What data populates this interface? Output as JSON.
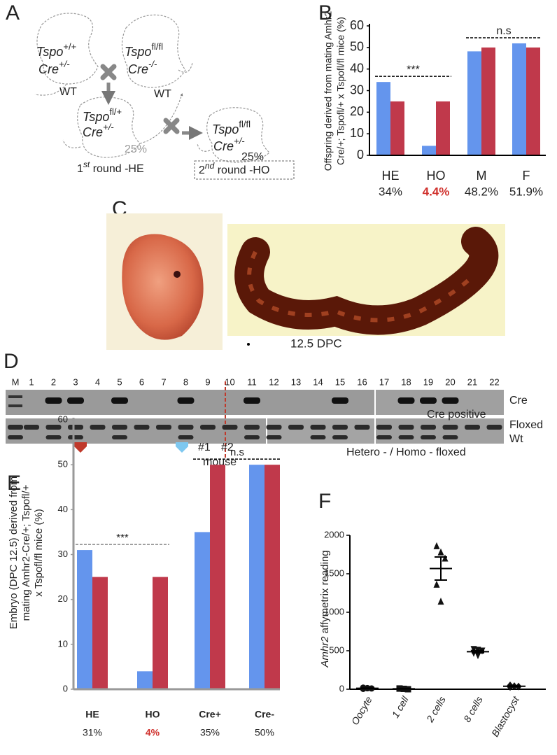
{
  "panel_letters": [
    "A",
    "B",
    "C",
    "D",
    "E",
    "F"
  ],
  "diagram": {
    "mice": [
      {
        "gene": "Tspo",
        "genotype": "+/+",
        "cre": "Cre",
        "cre_genotype": "+/-",
        "label": "WT"
      },
      {
        "gene": "Tspo",
        "genotype": "fl/fl",
        "cre": "Cre",
        "cre_genotype": "-/-",
        "label": "WT"
      },
      {
        "gene": "Tspo",
        "genotype": "fl/+",
        "cre": "Cre",
        "cre_genotype": "+/-",
        "percent": "25%",
        "round": "1",
        "round_suffix": "st",
        "round_label": " round -HE"
      },
      {
        "gene": "Tspo",
        "genotype": "fl/fl",
        "cre": "Cre",
        "cre_genotype": "+/-",
        "percent": "25%",
        "round": "2",
        "round_suffix": "nd",
        "round_label": " round -HO"
      }
    ]
  },
  "photo": {
    "caption": "12.5 DPC"
  },
  "gel": {
    "lanes": [
      "M",
      "1",
      "2",
      "3",
      "4",
      "5",
      "6",
      "7",
      "8",
      "9",
      "10",
      "11",
      "12",
      "13",
      "14",
      "15",
      "16",
      "17",
      "18",
      "19",
      "20",
      "21",
      "22"
    ],
    "labels": {
      "cre": "Cre",
      "cre_positive": "Cre positive",
      "floxed": "Floxed",
      "wt": "Wt",
      "mouse1": "#1",
      "mouse2": "#2",
      "mouse": "mouse",
      "genotype": "Hetero - / Homo - floxed"
    }
  },
  "chart_data": [
    {
      "type": "bar",
      "ylabel": [
        "Offspring derived from mating Amhr2",
        "Cre/+; Tspofl/+ x Tspofl/fl mice (%)"
      ],
      "categories": [
        "HE",
        "HO",
        "M",
        "F"
      ],
      "series": [
        {
          "color": "#6495ed",
          "values": [
            34,
            4.4,
            48.2,
            51.9
          ],
          "value_labels": [
            "34%",
            "4.4%",
            "48.2%",
            "51.9%"
          ]
        },
        {
          "color": "#c0394b",
          "values": [
            25,
            25,
            50,
            50
          ]
        }
      ],
      "highlight_index": 1,
      "highlight_color": "#d0312d",
      "annotations": [
        "***",
        "n.s"
      ],
      "ylim": [
        0,
        60
      ],
      "yticks": [
        0,
        10,
        20,
        30,
        40,
        50,
        60
      ]
    },
    {
      "type": "bar",
      "ylabel": [
        "Embryo (DPC 12.5) derived from",
        "mating Amhr2-Cre/+; Tspofl/+",
        "x Tspofl/fl mice (%)"
      ],
      "categories": [
        "HE",
        "HO",
        "Cre+",
        "Cre-"
      ],
      "series": [
        {
          "color": "#6495ed",
          "values": [
            31,
            4,
            35,
            50
          ],
          "value_labels": [
            "31%",
            "4%",
            "35%",
            "50%"
          ]
        },
        {
          "color": "#c0394b",
          "values": [
            25,
            25,
            50,
            50
          ]
        }
      ],
      "highlight_index": 1,
      "highlight_color": "#d0312d",
      "annotations": [
        "***",
        "n.s"
      ],
      "ylim": [
        0,
        60
      ],
      "yticks": [
        0,
        10,
        20,
        30,
        40,
        50,
        60
      ]
    },
    {
      "type": "dot",
      "ylabel_italic": "Amhr2",
      "ylabel": " affymetrix reading",
      "categories": [
        "Oocyte",
        "1 cell",
        "2 cells",
        "8 cells",
        "Blastocyst"
      ],
      "markers": [
        "circle",
        "square",
        "triangle",
        "triangle-down",
        "diamond"
      ],
      "points": [
        [
          20,
          15,
          10,
          5,
          12
        ],
        [
          10,
          5,
          0,
          8
        ],
        [
          1860,
          1780,
          1700,
          1360,
          1140
        ],
        [
          520,
          510,
          500,
          470,
          440
        ],
        [
          50,
          40,
          35,
          30
        ]
      ],
      "means": [
        12,
        6,
        1568,
        488,
        39
      ],
      "sems": [
        3,
        2,
        150,
        15,
        4
      ],
      "ylim": [
        0,
        2000
      ],
      "yticks": [
        0,
        500,
        1000,
        1500,
        2000
      ]
    }
  ]
}
